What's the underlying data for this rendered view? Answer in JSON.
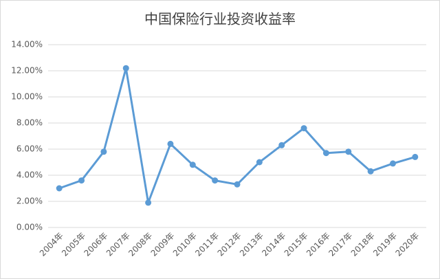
{
  "chart_data": {
    "type": "line",
    "title": "中国保险行业投资收益率",
    "categories": [
      "2004年",
      "2005年",
      "2006年",
      "2007年",
      "2008年",
      "2009年",
      "2010年",
      "2011年",
      "2012年",
      "2013年",
      "2014年",
      "2015年",
      "2016年",
      "2017年",
      "2018年",
      "2019年",
      "2020年"
    ],
    "series": [
      {
        "name": "投资收益率",
        "color": "#5b9bd5",
        "values": [
          3.0,
          3.6,
          5.8,
          12.2,
          1.9,
          6.4,
          4.8,
          3.6,
          3.3,
          5.0,
          6.3,
          7.6,
          5.7,
          5.8,
          4.3,
          4.9,
          5.4
        ]
      }
    ],
    "ylim": [
      0,
      14
    ],
    "yticks": [
      {
        "value": 0,
        "label": "0.00%"
      },
      {
        "value": 2,
        "label": "2.00%"
      },
      {
        "value": 4,
        "label": "4.00%"
      },
      {
        "value": 6,
        "label": "6.00%"
      },
      {
        "value": 8,
        "label": "8.00%"
      },
      {
        "value": 10,
        "label": "10.00%"
      },
      {
        "value": 12,
        "label": "12.00%"
      },
      {
        "value": 14,
        "label": "14.00%"
      }
    ],
    "grid": true
  }
}
